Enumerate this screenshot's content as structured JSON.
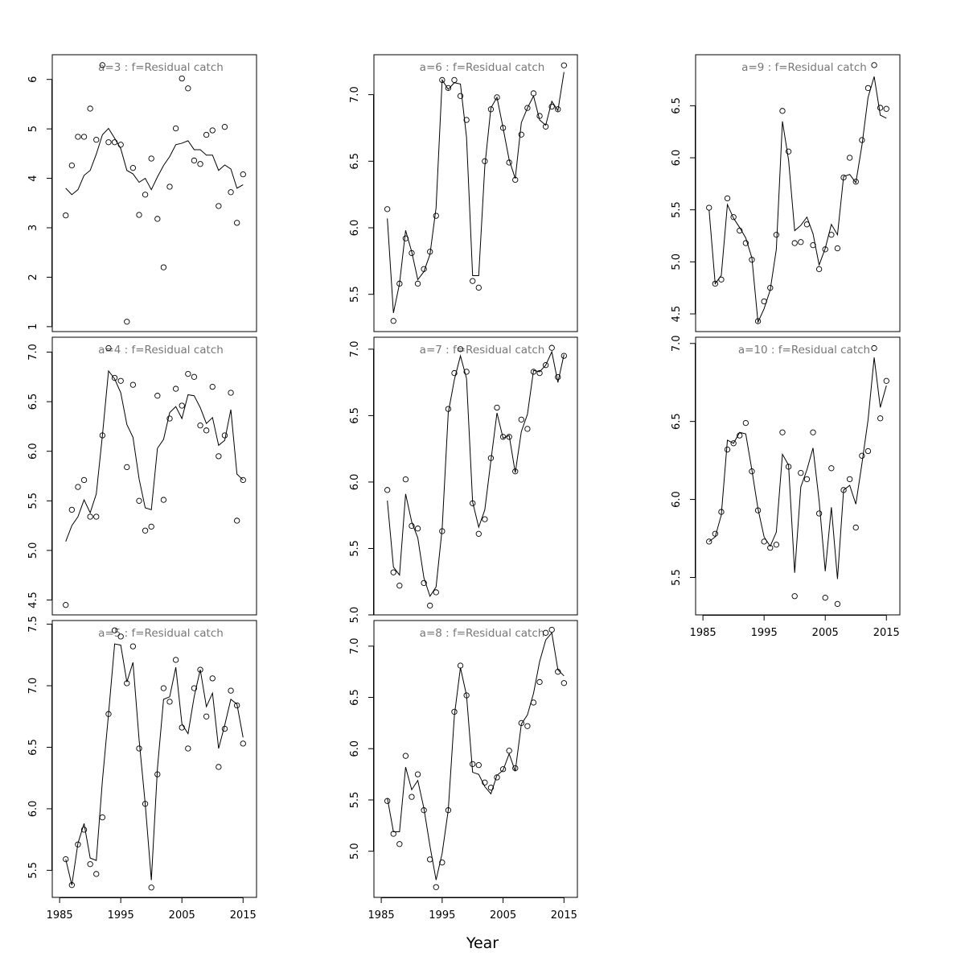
{
  "xlabel": "Year",
  "chart_data": [
    {
      "type": "line",
      "title": "a=3  :  f=Residual catch",
      "x": [
        1986,
        1987,
        1988,
        1989,
        1990,
        1991,
        1992,
        1993,
        1994,
        1995,
        1996,
        1997,
        1998,
        1999,
        2000,
        2001,
        2002,
        2003,
        2004,
        2005,
        2006,
        2007,
        2008,
        2009,
        2010,
        2011,
        2012,
        2013,
        2014,
        2015
      ],
      "observed": [
        3.25,
        4.26,
        4.84,
        4.84,
        5.41,
        4.78,
        6.29,
        4.73,
        4.73,
        4.68,
        1.1,
        4.21,
        3.26,
        3.67,
        4.4,
        3.18,
        2.2,
        3.83,
        5.01,
        6.02,
        5.82,
        4.36,
        4.29,
        4.88,
        4.97,
        3.44,
        5.04,
        3.72,
        3.1,
        4.08
      ],
      "fitted": [
        3.8,
        3.67,
        3.77,
        4.06,
        4.16,
        4.49,
        4.88,
        5.01,
        4.81,
        4.6,
        4.16,
        4.09,
        3.92,
        4.0,
        3.77,
        4.03,
        4.26,
        4.44,
        4.68,
        4.71,
        4.76,
        4.58,
        4.58,
        4.47,
        4.47,
        4.16,
        4.27,
        4.19,
        3.8,
        3.87
      ],
      "xlim": [
        1983.8,
        2017.2
      ],
      "ylim": [
        0.9,
        6.5
      ],
      "yticks": [
        1,
        2,
        3,
        4,
        5,
        6
      ]
    },
    {
      "type": "line",
      "title": "a=4  :  f=Residual catch",
      "x": [
        1986,
        1987,
        1988,
        1989,
        1990,
        1991,
        1992,
        1993,
        1994,
        1995,
        1996,
        1997,
        1998,
        1999,
        2000,
        2001,
        2002,
        2003,
        2004,
        2005,
        2006,
        2007,
        2008,
        2009,
        2010,
        2011,
        2012,
        2013,
        2014,
        2015
      ],
      "observed": [
        4.45,
        5.41,
        5.64,
        5.71,
        5.34,
        5.34,
        6.16,
        7.04,
        6.74,
        6.71,
        5.84,
        6.67,
        5.5,
        5.2,
        5.24,
        6.56,
        5.51,
        6.33,
        6.63,
        6.46,
        6.78,
        6.75,
        6.26,
        6.21,
        6.65,
        5.95,
        6.16,
        6.59,
        5.3,
        5.71
      ],
      "fitted": [
        5.09,
        5.25,
        5.34,
        5.51,
        5.38,
        5.57,
        6.16,
        6.81,
        6.73,
        6.59,
        6.27,
        6.14,
        5.72,
        5.43,
        5.41,
        6.03,
        6.12,
        6.39,
        6.45,
        6.33,
        6.57,
        6.56,
        6.44,
        6.28,
        6.34,
        6.06,
        6.11,
        6.42,
        5.77,
        5.71
      ],
      "xlim": [
        1983.8,
        2017.2
      ],
      "ylim": [
        4.35,
        7.15
      ],
      "yticks": [
        4.5,
        {
          "value": 5,
          "label": "5.0"
        },
        5.5,
        {
          "value": 6,
          "label": "6.0"
        },
        6.5,
        {
          "value": 7,
          "label": "7.0"
        }
      ]
    },
    {
      "type": "line",
      "title": "a=5  :  f=Residual catch",
      "x": [
        1986,
        1987,
        1988,
        1989,
        1990,
        1991,
        1992,
        1993,
        1994,
        1995,
        1996,
        1997,
        1998,
        1999,
        2000,
        2001,
        2002,
        2003,
        2004,
        2005,
        2006,
        2007,
        2008,
        2009,
        2010,
        2011,
        2012,
        2013,
        2014,
        2015
      ],
      "observed": [
        5.59,
        5.38,
        5.71,
        5.83,
        5.55,
        5.47,
        5.93,
        6.77,
        7.45,
        7.4,
        7.02,
        7.32,
        6.49,
        6.04,
        5.36,
        6.28,
        6.98,
        6.87,
        7.21,
        6.66,
        6.49,
        6.98,
        7.13,
        6.75,
        7.06,
        6.34,
        6.65,
        6.96,
        6.84,
        6.53
      ],
      "fitted": [
        5.59,
        5.38,
        5.72,
        5.88,
        5.6,
        5.58,
        6.23,
        6.77,
        7.34,
        7.33,
        7.03,
        7.19,
        6.56,
        6.04,
        5.42,
        6.33,
        6.89,
        6.91,
        7.15,
        6.69,
        6.61,
        6.91,
        7.13,
        6.83,
        6.94,
        6.49,
        6.68,
        6.89,
        6.85,
        6.58
      ],
      "xlim": [
        1983.8,
        2017.2
      ],
      "ylim": [
        5.28,
        7.53
      ],
      "yticks": [
        5.5,
        {
          "value": 6,
          "label": "6.0"
        },
        6.5,
        {
          "value": 7,
          "label": "7.0"
        },
        7.5
      ],
      "xticks": [
        1985,
        1995,
        2005,
        2015
      ]
    },
    {
      "type": "line",
      "title": "a=6  :  f=Residual catch",
      "x": [
        1986,
        1987,
        1988,
        1989,
        1990,
        1991,
        1992,
        1993,
        1994,
        1995,
        1996,
        1997,
        1998,
        1999,
        2000,
        2001,
        2002,
        2003,
        2004,
        2005,
        2006,
        2007,
        2008,
        2009,
        2010,
        2011,
        2012,
        2013,
        2014,
        2015
      ],
      "observed": [
        6.14,
        5.3,
        5.58,
        5.92,
        5.81,
        5.58,
        5.69,
        5.82,
        6.09,
        7.11,
        7.05,
        7.11,
        6.99,
        6.81,
        5.6,
        5.55,
        6.5,
        6.89,
        6.98,
        6.75,
        6.49,
        6.36,
        6.7,
        6.9,
        7.01,
        6.84,
        6.76,
        6.91,
        6.89,
        7.22
      ],
      "fitted": [
        6.07,
        5.36,
        5.58,
        5.98,
        5.82,
        5.61,
        5.67,
        5.8,
        6.15,
        7.11,
        7.04,
        7.09,
        7.08,
        6.68,
        5.64,
        5.64,
        6.46,
        6.9,
        6.98,
        6.75,
        6.51,
        6.37,
        6.79,
        6.9,
        6.99,
        6.81,
        6.77,
        6.95,
        6.88,
        7.17
      ],
      "xlim": [
        1983.8,
        2017.2
      ],
      "ylim": [
        5.22,
        7.3
      ],
      "yticks": [
        5.5,
        {
          "value": 6,
          "label": "6.0"
        },
        6.5,
        {
          "value": 7,
          "label": "7.0"
        }
      ]
    },
    {
      "type": "line",
      "title": "a=7  :  f=Residual catch",
      "x": [
        1986,
        1987,
        1988,
        1989,
        1990,
        1991,
        1992,
        1993,
        1994,
        1995,
        1996,
        1997,
        1998,
        1999,
        2000,
        2001,
        2002,
        2003,
        2004,
        2005,
        2006,
        2007,
        2008,
        2009,
        2010,
        2011,
        2012,
        2013,
        2014,
        2015
      ],
      "observed": [
        5.94,
        5.32,
        5.22,
        6.02,
        5.67,
        5.65,
        5.24,
        5.07,
        5.17,
        5.63,
        6.55,
        6.82,
        7.0,
        6.83,
        5.84,
        5.61,
        5.72,
        6.18,
        6.56,
        6.34,
        6.34,
        6.08,
        6.47,
        6.4,
        6.83,
        6.82,
        6.88,
        7.01,
        6.79,
        6.95
      ],
      "fitted": [
        5.86,
        5.36,
        5.3,
        5.91,
        5.7,
        5.58,
        5.28,
        5.14,
        5.21,
        5.65,
        6.52,
        6.77,
        6.95,
        6.78,
        5.85,
        5.66,
        5.79,
        6.16,
        6.52,
        6.33,
        6.35,
        6.07,
        6.38,
        6.51,
        6.84,
        6.83,
        6.88,
        6.98,
        6.75,
        6.96
      ],
      "xlim": [
        1983.8,
        2017.2
      ],
      "ylim": [
        5.0,
        7.09
      ],
      "yticks": [
        {
          "value": 5,
          "label": "5.0"
        },
        5.5,
        {
          "value": 6,
          "label": "6.0"
        },
        6.5,
        {
          "value": 7,
          "label": "7.0"
        }
      ]
    },
    {
      "type": "line",
      "title": "a=8  :  f=Residual catch",
      "x": [
        1986,
        1987,
        1988,
        1989,
        1990,
        1991,
        1992,
        1993,
        1994,
        1995,
        1996,
        1997,
        1998,
        1999,
        2000,
        2001,
        2002,
        2003,
        2004,
        2005,
        2006,
        2007,
        2008,
        2009,
        2010,
        2011,
        2012,
        2013,
        2014,
        2015
      ],
      "observed": [
        5.49,
        5.17,
        5.07,
        5.93,
        5.53,
        5.75,
        5.4,
        4.92,
        4.65,
        4.89,
        5.4,
        6.36,
        6.81,
        6.52,
        5.85,
        5.84,
        5.67,
        5.62,
        5.72,
        5.8,
        5.98,
        5.81,
        6.25,
        6.22,
        6.45,
        6.65,
        7.13,
        7.16,
        6.75,
        6.64
      ],
      "fitted": [
        5.52,
        5.19,
        5.19,
        5.82,
        5.6,
        5.69,
        5.42,
        5.05,
        4.72,
        4.98,
        5.4,
        6.32,
        6.79,
        6.52,
        5.77,
        5.75,
        5.63,
        5.56,
        5.74,
        5.79,
        5.95,
        5.78,
        6.24,
        6.33,
        6.54,
        6.85,
        7.06,
        7.13,
        6.77,
        6.71
      ],
      "xlim": [
        1983.8,
        2017.2
      ],
      "ylim": [
        4.55,
        7.25
      ],
      "yticks": [
        {
          "value": 5,
          "label": "5.0"
        },
        5.5,
        {
          "value": 6,
          "label": "6.0"
        },
        6.5,
        {
          "value": 7,
          "label": "7.0"
        }
      ],
      "xticks": [
        1985,
        1995,
        2005,
        2015
      ]
    },
    {
      "type": "line",
      "title": "a=9  :  f=Residual catch",
      "x": [
        1986,
        1987,
        1988,
        1989,
        1990,
        1991,
        1992,
        1993,
        1994,
        1995,
        1996,
        1997,
        1998,
        1999,
        2000,
        2001,
        2002,
        2003,
        2004,
        2005,
        2006,
        2007,
        2008,
        2009,
        2010,
        2011,
        2012,
        2013,
        2014,
        2015
      ],
      "observed": [
        5.52,
        4.79,
        4.83,
        5.61,
        5.43,
        5.3,
        5.18,
        5.02,
        4.43,
        4.62,
        4.75,
        5.26,
        6.45,
        6.06,
        5.18,
        5.19,
        5.36,
        5.16,
        4.93,
        5.12,
        5.26,
        5.13,
        5.81,
        6.0,
        5.77,
        6.17,
        6.67,
        6.89,
        6.48,
        6.47
      ],
      "fitted": [
        5.5,
        4.79,
        4.87,
        5.55,
        5.42,
        5.33,
        5.23,
        5.04,
        4.42,
        4.55,
        4.73,
        5.12,
        6.35,
        5.98,
        5.3,
        5.35,
        5.43,
        5.27,
        4.97,
        5.13,
        5.36,
        5.26,
        5.82,
        5.84,
        5.76,
        6.12,
        6.58,
        6.78,
        6.41,
        6.38
      ],
      "xlim": [
        1983.8,
        2017.2
      ],
      "ylim": [
        4.33,
        6.99
      ],
      "yticks": [
        4.5,
        {
          "value": 5,
          "label": "5.0"
        },
        5.5,
        {
          "value": 6,
          "label": "6.0"
        },
        6.5
      ]
    },
    {
      "type": "line",
      "title": "a=10  :  f=Residual catch",
      "x": [
        1986,
        1987,
        1988,
        1989,
        1990,
        1991,
        1992,
        1993,
        1994,
        1995,
        1996,
        1997,
        1998,
        1999,
        2000,
        2001,
        2002,
        2003,
        2004,
        2005,
        2006,
        2007,
        2008,
        2009,
        2010,
        2011,
        2012,
        2013,
        2014,
        2015
      ],
      "observed": [
        5.73,
        5.78,
        5.92,
        6.32,
        6.36,
        6.41,
        6.49,
        6.18,
        5.93,
        5.73,
        5.69,
        5.71,
        6.43,
        6.21,
        5.38,
        6.17,
        6.13,
        6.43,
        5.91,
        5.37,
        6.2,
        5.33,
        6.06,
        6.13,
        5.82,
        6.28,
        6.31,
        6.97,
        6.52,
        6.76
      ],
      "fitted": [
        5.73,
        5.76,
        5.9,
        6.38,
        6.36,
        6.43,
        6.42,
        6.19,
        5.94,
        5.76,
        5.7,
        5.79,
        6.29,
        6.22,
        5.53,
        6.08,
        6.19,
        6.33,
        5.99,
        5.54,
        5.95,
        5.49,
        6.06,
        6.09,
        5.97,
        6.23,
        6.51,
        6.91,
        6.59,
        6.73
      ],
      "xlim": [
        1983.8,
        2017.2
      ],
      "ylim": [
        5.26,
        7.04
      ],
      "yticks": [
        5.5,
        {
          "value": 6,
          "label": "6.0"
        },
        6.5,
        {
          "value": 7,
          "label": "7.0"
        }
      ],
      "xticks": [
        1985,
        1995,
        2005,
        2015
      ]
    }
  ]
}
